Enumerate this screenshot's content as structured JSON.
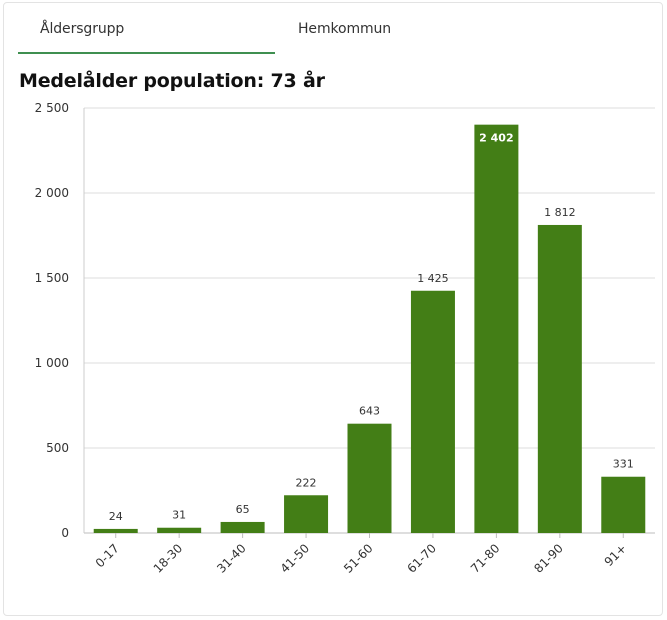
{
  "tabs": [
    {
      "label": "Åldersgrupp",
      "active": true
    },
    {
      "label": "Hemkommun",
      "active": false
    }
  ],
  "colors": {
    "bar": "#437e16",
    "accent": "#3f8f50",
    "grid": "#dcdcdc"
  },
  "chart_data": {
    "type": "bar",
    "title": "Medelålder population: 73 år",
    "xlabel": "",
    "ylabel": "",
    "categories": [
      "0-17",
      "18-30",
      "31-40",
      "41-50",
      "51-60",
      "61-70",
      "71-80",
      "81-90",
      "91+"
    ],
    "values": [
      24,
      31,
      65,
      222,
      643,
      1425,
      2402,
      1812,
      331
    ],
    "value_labels": [
      "24",
      "31",
      "65",
      "222",
      "643",
      "1 425",
      "2 402",
      "1 812",
      "331"
    ],
    "ylim": [
      0,
      2500
    ],
    "yticks": [
      0,
      500,
      1000,
      1500,
      2000,
      2500
    ],
    "ytick_labels": [
      "0",
      "500",
      "1 000",
      "1 500",
      "2 000",
      "2 500"
    ],
    "grid": true,
    "legend": "none"
  }
}
